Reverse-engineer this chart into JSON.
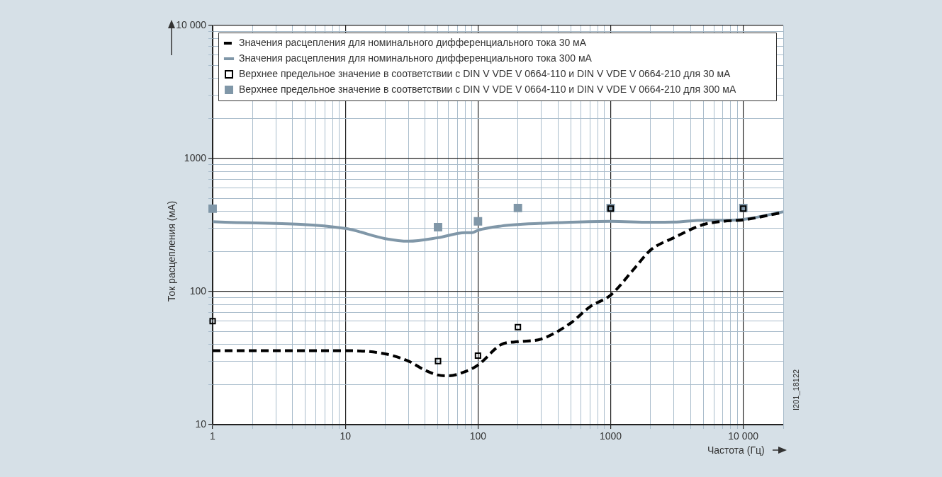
{
  "chart_data": {
    "type": "line",
    "xlabel": "Частота (Гц)",
    "ylabel": "Ток расцепления (мА)",
    "log": "xy",
    "grid": true,
    "legend": "top",
    "xlim": [
      1,
      20000
    ],
    "ylim": [
      10,
      10000
    ],
    "xticks": [
      1,
      {
        "value": 2,
        "label": null
      },
      {
        "value": 3,
        "label": null
      },
      {
        "value": 4,
        "label": null
      },
      {
        "value": 5,
        "label": null
      },
      {
        "value": 6,
        "label": null
      },
      {
        "value": 7,
        "label": null
      },
      {
        "value": 8,
        "label": null
      },
      {
        "value": 9,
        "label": null
      },
      10,
      {
        "value": 20,
        "label": null
      },
      {
        "value": 30,
        "label": null
      },
      {
        "value": 40,
        "label": null
      },
      {
        "value": 50,
        "label": null
      },
      {
        "value": 60,
        "label": null
      },
      {
        "value": 70,
        "label": null
      },
      {
        "value": 80,
        "label": null
      },
      {
        "value": 90,
        "label": null
      },
      100,
      {
        "value": 200,
        "label": null
      },
      {
        "value": 300,
        "label": null
      },
      {
        "value": 400,
        "label": null
      },
      {
        "value": 500,
        "label": null
      },
      {
        "value": 600,
        "label": null
      },
      {
        "value": 700,
        "label": null
      },
      {
        "value": 800,
        "label": null
      },
      {
        "value": 900,
        "label": null
      },
      1000,
      {
        "value": 2000,
        "label": null
      },
      {
        "value": 3000,
        "label": null
      },
      {
        "value": 4000,
        "label": null
      },
      {
        "value": 5000,
        "label": null
      },
      {
        "value": 6000,
        "label": null
      },
      {
        "value": 7000,
        "label": null
      },
      {
        "value": 8000,
        "label": null
      },
      {
        "value": 9000,
        "label": null
      },
      {
        "value": 10000,
        "label": "10 000"
      },
      {
        "value": 20000,
        "label": null
      }
    ],
    "yticks": [
      10,
      {
        "value": 20,
        "label": null
      },
      {
        "value": 30,
        "label": null
      },
      {
        "value": 40,
        "label": null
      },
      {
        "value": 50,
        "label": null
      },
      {
        "value": 60,
        "label": null
      },
      {
        "value": 70,
        "label": null
      },
      {
        "value": 80,
        "label": null
      },
      {
        "value": 90,
        "label": null
      },
      100,
      {
        "value": 200,
        "label": null
      },
      {
        "value": 300,
        "label": null
      },
      {
        "value": 400,
        "label": null
      },
      {
        "value": 500,
        "label": null
      },
      {
        "value": 600,
        "label": null
      },
      {
        "value": 700,
        "label": null
      },
      {
        "value": 800,
        "label": null
      },
      {
        "value": 900,
        "label": null
      },
      1000,
      {
        "value": 2000,
        "label": null
      },
      {
        "value": 3000,
        "label": null
      },
      {
        "value": 4000,
        "label": null
      },
      {
        "value": 5000,
        "label": null
      },
      {
        "value": 6000,
        "label": null
      },
      {
        "value": 7000,
        "label": null
      },
      {
        "value": 8000,
        "label": null
      },
      {
        "value": 9000,
        "label": null
      },
      {
        "value": 10000,
        "label": "10 000"
      }
    ],
    "series": [
      {
        "name": "Значения расцепления для номинального дифференциального тока 30 мА",
        "type": "line",
        "line_style": "dashed",
        "color": "#000000",
        "x": [
          1,
          10,
          20,
          30,
          40,
          50,
          60,
          80,
          100,
          150,
          200,
          300,
          500,
          700,
          1000,
          1500,
          2000,
          3000,
          5000,
          7000,
          10000,
          20000
        ],
        "values": [
          36,
          36,
          34,
          30,
          25.6,
          23.6,
          23.3,
          25,
          28,
          40,
          42,
          44,
          58,
          77,
          94,
          148,
          205,
          254,
          319,
          337,
          346,
          394
        ]
      },
      {
        "name": "Значения расцепления для номинального дифференциального тока 300 мА",
        "type": "line",
        "line_style": "solid",
        "color": "#8097a8",
        "x": [
          1,
          10,
          20,
          30,
          50,
          80,
          90,
          100,
          150,
          200,
          500,
          1000,
          2000,
          3000,
          5000,
          7000,
          10000,
          20000
        ],
        "values": [
          335,
          298,
          250,
          239,
          254,
          277,
          277,
          289,
          311,
          319,
          332,
          337,
          332,
          333,
          344,
          343,
          349,
          398
        ]
      },
      {
        "name": "Верхнее предельное значение в соответствии с DIN V VDE V 0664-110 и DIN V VDE V 0664-210 для 30 мА",
        "type": "scatter",
        "marker": "square",
        "color": "#000000",
        "x": [
          1,
          50,
          100,
          200,
          1000,
          10000
        ],
        "values": [
          60,
          30,
          33,
          54,
          420,
          420
        ]
      },
      {
        "name": "Верхнее предельное значение в соответствии с DIN V VDE V 0664-110 и DIN V VDE V 0664-210 для 300 мА",
        "type": "scatter",
        "marker": "square",
        "color": "#8097a8",
        "x": [
          1,
          50,
          100,
          200,
          1000,
          10000
        ],
        "values": [
          420,
          305,
          337,
          425,
          425,
          425
        ]
      }
    ],
    "annotations": [
      "I201_18122"
    ]
  }
}
